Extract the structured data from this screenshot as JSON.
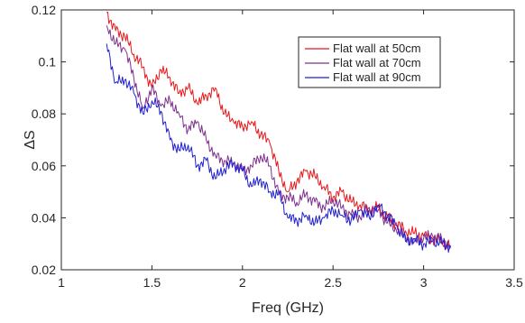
{
  "chart_data": {
    "type": "line",
    "title": "",
    "xlabel": "Freq (GHz)",
    "ylabel": "ΔS",
    "xlim": [
      1,
      3.5
    ],
    "ylim": [
      0.02,
      0.12
    ],
    "xticks": [
      1,
      1.5,
      2,
      2.5,
      3,
      3.5
    ],
    "xtick_labels": [
      "1",
      "1.5",
      "2",
      "2.5",
      "3",
      "3.5"
    ],
    "yticks": [
      0.02,
      0.04,
      0.06,
      0.08,
      0.1,
      0.12
    ],
    "ytick_labels": [
      "0.02",
      "0.04",
      "0.06",
      "0.08",
      "0.1",
      "0.12"
    ],
    "grid": false,
    "legend_position": "top-right",
    "series": [
      {
        "name": "Flat wall at 50cm",
        "color": "#e8171c",
        "x": [
          1.25,
          1.3,
          1.35,
          1.4,
          1.45,
          1.5,
          1.55,
          1.6,
          1.65,
          1.7,
          1.75,
          1.8,
          1.85,
          1.9,
          1.95,
          2.0,
          2.05,
          2.1,
          2.15,
          2.2,
          2.25,
          2.3,
          2.35,
          2.4,
          2.45,
          2.5,
          2.55,
          2.6,
          2.65,
          2.7,
          2.75,
          2.8,
          2.85,
          2.9,
          2.95,
          3.0,
          3.05,
          3.1,
          3.15
        ],
        "values": [
          0.119,
          0.112,
          0.11,
          0.103,
          0.098,
          0.09,
          0.097,
          0.094,
          0.088,
          0.09,
          0.084,
          0.087,
          0.09,
          0.08,
          0.077,
          0.075,
          0.077,
          0.072,
          0.069,
          0.058,
          0.05,
          0.054,
          0.058,
          0.056,
          0.052,
          0.048,
          0.05,
          0.046,
          0.045,
          0.043,
          0.044,
          0.04,
          0.038,
          0.035,
          0.034,
          0.033,
          0.032,
          0.031,
          0.029
        ]
      },
      {
        "name": "Flat wall at 70cm",
        "color": "#7e2f8e",
        "x": [
          1.25,
          1.3,
          1.35,
          1.4,
          1.45,
          1.5,
          1.55,
          1.6,
          1.65,
          1.7,
          1.75,
          1.8,
          1.85,
          1.9,
          1.95,
          2.0,
          2.05,
          2.1,
          2.15,
          2.2,
          2.25,
          2.3,
          2.35,
          2.4,
          2.45,
          2.5,
          2.55,
          2.6,
          2.65,
          2.7,
          2.75,
          2.8,
          2.85,
          2.9,
          2.95,
          3.0,
          3.05,
          3.1,
          3.15
        ],
        "values": [
          0.114,
          0.107,
          0.105,
          0.094,
          0.082,
          0.09,
          0.083,
          0.085,
          0.08,
          0.074,
          0.077,
          0.07,
          0.064,
          0.062,
          0.061,
          0.058,
          0.06,
          0.064,
          0.06,
          0.049,
          0.048,
          0.046,
          0.049,
          0.046,
          0.044,
          0.047,
          0.044,
          0.041,
          0.04,
          0.044,
          0.043,
          0.038,
          0.035,
          0.033,
          0.031,
          0.032,
          0.033,
          0.032,
          0.029
        ]
      },
      {
        "name": "Flat wall at 90cm",
        "color": "#1f1fd1",
        "x": [
          1.25,
          1.3,
          1.35,
          1.4,
          1.45,
          1.5,
          1.55,
          1.6,
          1.65,
          1.7,
          1.75,
          1.8,
          1.85,
          1.9,
          1.95,
          2.0,
          2.05,
          2.1,
          2.15,
          2.2,
          2.25,
          2.3,
          2.35,
          2.4,
          2.45,
          2.5,
          2.55,
          2.6,
          2.65,
          2.7,
          2.75,
          2.8,
          2.85,
          2.9,
          2.95,
          3.0,
          3.05,
          3.1,
          3.15
        ],
        "values": [
          0.107,
          0.092,
          0.093,
          0.088,
          0.08,
          0.085,
          0.081,
          0.07,
          0.066,
          0.068,
          0.06,
          0.062,
          0.055,
          0.059,
          0.061,
          0.058,
          0.052,
          0.055,
          0.05,
          0.049,
          0.04,
          0.039,
          0.041,
          0.038,
          0.04,
          0.043,
          0.041,
          0.039,
          0.043,
          0.04,
          0.045,
          0.041,
          0.037,
          0.031,
          0.032,
          0.03,
          0.031,
          0.03,
          0.029
        ]
      }
    ]
  }
}
